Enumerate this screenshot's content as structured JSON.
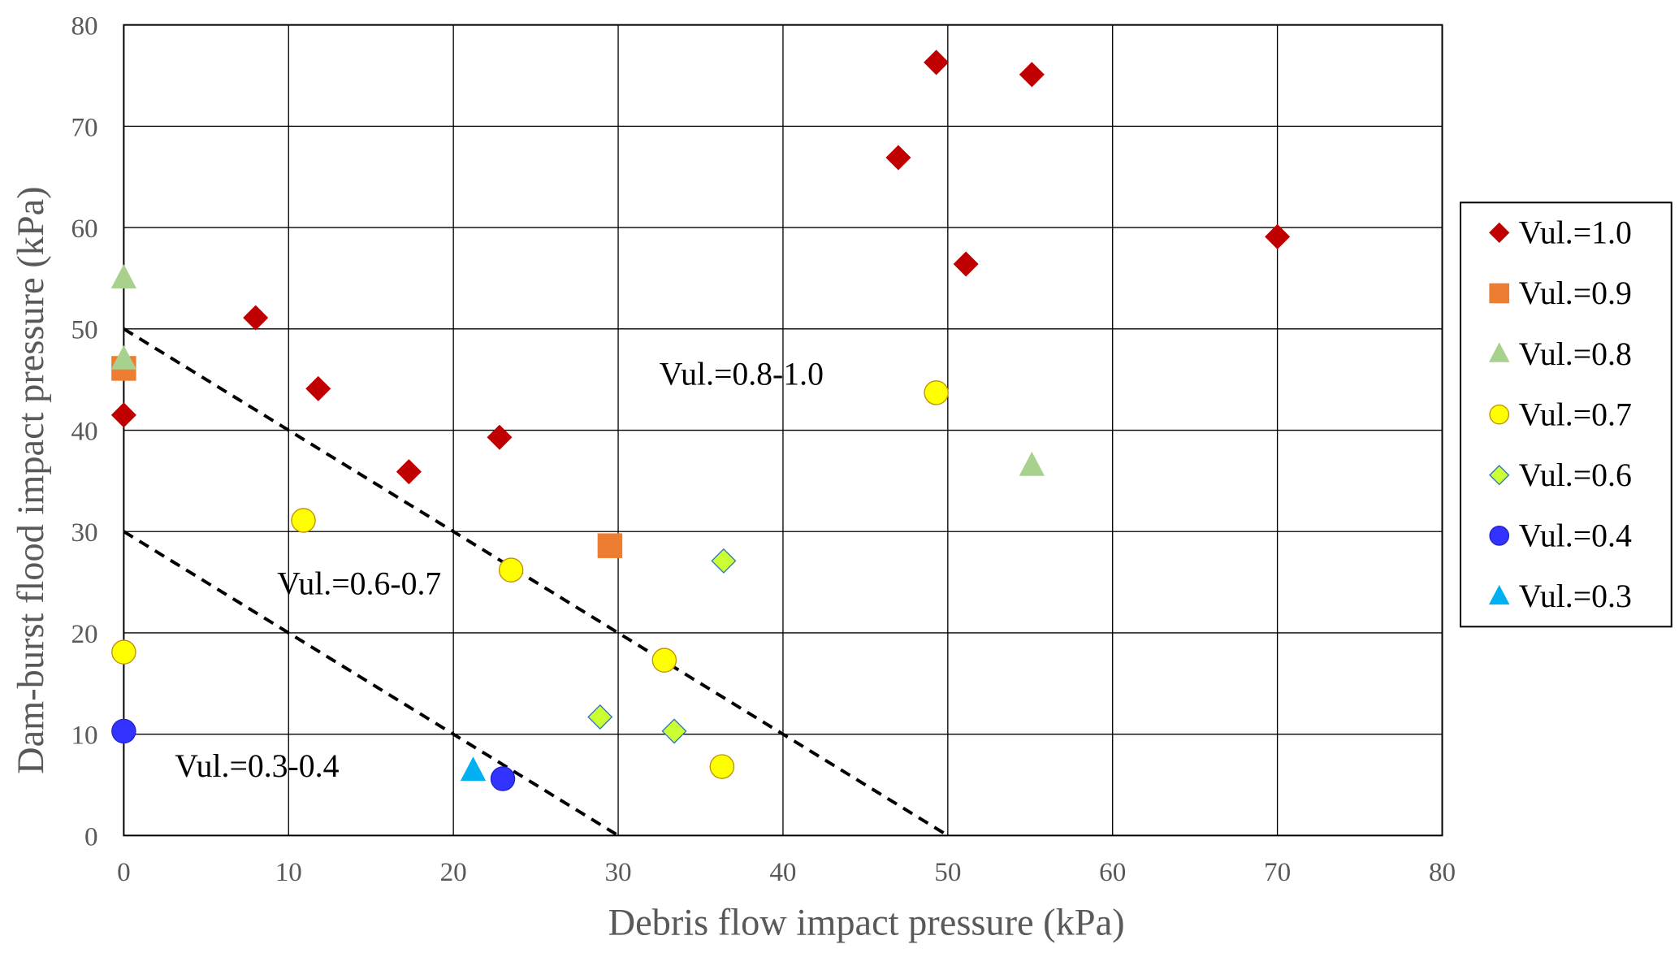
{
  "chart_data": {
    "type": "scatter",
    "xlabel": "Debris flow impact pressure (kPa)",
    "ylabel": "Dam-burst flood impact pressure (kPa)",
    "xlim": [
      0,
      80
    ],
    "ylim": [
      0,
      80
    ],
    "xticks": [
      0,
      10,
      20,
      30,
      40,
      50,
      60,
      70,
      80
    ],
    "yticks": [
      0,
      10,
      20,
      30,
      40,
      50,
      60,
      70,
      80
    ],
    "grid": true,
    "legend_position": "right",
    "series": [
      {
        "name": "Vul.=1.0",
        "marker": "diamond",
        "color": "#C00000",
        "stroke": "#C00000",
        "points": [
          [
            0,
            41.5
          ],
          [
            8.0,
            51.1
          ],
          [
            11.8,
            44.1
          ],
          [
            17.3,
            35.9
          ],
          [
            22.8,
            39.3
          ],
          [
            47.0,
            66.9
          ],
          [
            49.3,
            76.3
          ],
          [
            55.1,
            75.1
          ],
          [
            51.1,
            56.4
          ],
          [
            70.0,
            59.1
          ]
        ]
      },
      {
        "name": "Vul.=0.9",
        "marker": "square",
        "color": "#ED7D31",
        "stroke": "#ED7D31",
        "points": [
          [
            0,
            46.1
          ],
          [
            29.5,
            28.6
          ]
        ]
      },
      {
        "name": "Vul.=0.8",
        "marker": "triangle",
        "color": "#A9D18E",
        "stroke": "#A9D18E",
        "points": [
          [
            0,
            55.0
          ],
          [
            0,
            47.0
          ],
          [
            55.1,
            36.5
          ]
        ]
      },
      {
        "name": "Vul.=0.7",
        "marker": "circle",
        "color": "#FFFF00",
        "stroke": "#BF9000",
        "points": [
          [
            49.3,
            43.7
          ],
          [
            10.9,
            31.1
          ],
          [
            23.5,
            26.2
          ],
          [
            32.8,
            17.3
          ],
          [
            0,
            18.1
          ],
          [
            36.3,
            6.8
          ]
        ]
      },
      {
        "name": "Vul.=0.6",
        "marker": "diamond",
        "color": "#CCFF33",
        "stroke": "#2E75B6",
        "points": [
          [
            36.4,
            27.1
          ],
          [
            28.9,
            11.7
          ],
          [
            33.4,
            10.3
          ]
        ]
      },
      {
        "name": "Vul.=0.4",
        "marker": "circle",
        "color": "#3333FF",
        "stroke": "#2222CC",
        "points": [
          [
            0,
            10.3
          ],
          [
            23.0,
            5.6
          ]
        ]
      },
      {
        "name": "Vul.=0.3",
        "marker": "triangle",
        "color": "#00B0F0",
        "stroke": "#00B0F0",
        "points": [
          [
            21.2,
            6.4
          ]
        ]
      }
    ],
    "boundary_lines": [
      {
        "from": [
          0,
          50
        ],
        "to": [
          50,
          0
        ]
      },
      {
        "from": [
          0,
          30
        ],
        "to": [
          30,
          0
        ]
      }
    ],
    "annotations": [
      {
        "text": "Vul.=0.8-1.0",
        "x": 32.5,
        "y": 44.5
      },
      {
        "text": "Vul.=0.6-0.7",
        "x": 9.3,
        "y": 23.8
      },
      {
        "text": "Vul.=0.3-0.4",
        "x": 3.1,
        "y": 5.8
      }
    ]
  }
}
